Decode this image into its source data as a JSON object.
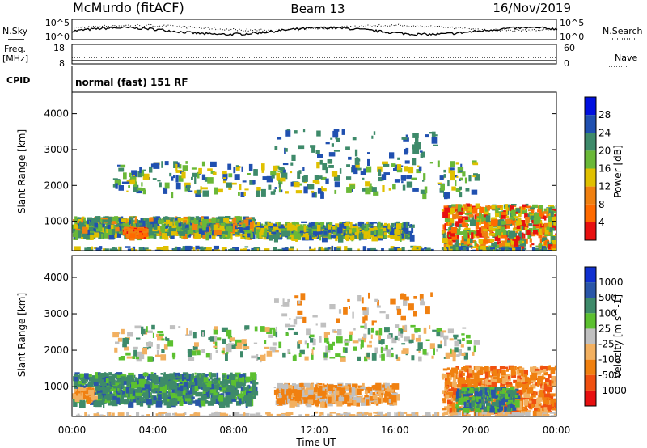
{
  "header": {
    "station": "McMurdo (fitACF)",
    "beam": "Beam 13",
    "date": "16/Nov/2019"
  },
  "side_labels": {
    "nsky": "N.Sky",
    "nsearch": "N.Search",
    "freq_line1": "Freq.",
    "freq_line2": "[MHz]",
    "nave": "Nave",
    "cpid": "CPID"
  },
  "cpid_text": "normal (fast) 151 RF",
  "chart_data": [
    {
      "type": "line",
      "panel": "noise",
      "left_ticks": [
        "10^5",
        "10^0"
      ],
      "right_ticks": [
        "10^5",
        "10^0"
      ],
      "series": [
        {
          "name": "N.Sky",
          "style": "solid"
        },
        {
          "name": "N.Search",
          "style": "dotted"
        }
      ]
    },
    {
      "type": "line",
      "panel": "frequency",
      "left_ticks": [
        "18",
        "8"
      ],
      "right_ticks": [
        "60",
        "0"
      ],
      "series": [
        {
          "name": "Freq.",
          "style": "solid",
          "value": 10.5
        },
        {
          "name": "Nave",
          "style": "dotted",
          "value": 20
        }
      ]
    },
    {
      "type": "heatmap",
      "panel": "power",
      "ylabel": "Slant Range [km]",
      "xlim": [
        0,
        24
      ],
      "ylim": [
        180,
        4600
      ],
      "yticks": [
        1000,
        2000,
        3000,
        4000
      ],
      "colorbar": {
        "label": "Power [dB]",
        "ticks": [
          "4",
          "8",
          "12",
          "16",
          "20",
          "24",
          "28"
        ],
        "colors": [
          "#0010e0",
          "#2050b0",
          "#3e8a6a",
          "#6ab838",
          "#e0c000",
          "#f08010",
          "#ff6a00",
          "#e81010"
        ]
      },
      "features": [
        {
          "t0": 0.0,
          "t1": 9.0,
          "r0": 650,
          "r1": 1150,
          "level": "8-28 dB",
          "desc": "near-range band"
        },
        {
          "t0": 9.0,
          "t1": 16.8,
          "r0": 600,
          "r1": 1000,
          "level": "8-20 dB"
        },
        {
          "t0": 18.3,
          "t1": 24.0,
          "r0": 300,
          "r1": 1500,
          "level": "12-28 dB"
        },
        {
          "t0": 2.0,
          "t1": 20.0,
          "r0": 1800,
          "r1": 3600,
          "level": "4-16 dB",
          "desc": "scattered far range"
        }
      ]
    },
    {
      "type": "heatmap",
      "panel": "velocity",
      "ylabel": "Slant Range [km]",
      "xlabel": "Time UT",
      "xlim": [
        0,
        24
      ],
      "ylim": [
        180,
        4600
      ],
      "xticks": [
        "00:00",
        "04:00",
        "08:00",
        "12:00",
        "16:00",
        "20:00",
        "00:00"
      ],
      "yticks": [
        1000,
        2000,
        3000,
        4000
      ],
      "colorbar": {
        "label": "Velocity [m s^-1]",
        "ticks": [
          "1000",
          "500",
          "100",
          "25",
          "-25",
          "-100",
          "-500",
          "-1000"
        ],
        "colors": [
          "#1030d0",
          "#2a56a8",
          "#3e8a6a",
          "#5cc030",
          "#c0c0c0",
          "#f2b060",
          "#f08010",
          "#f05010",
          "#e81010"
        ]
      },
      "features": [
        {
          "t0": 0.0,
          "t1": 9.0,
          "r0": 600,
          "r1": 1400,
          "level": "100 to 500 m/s"
        },
        {
          "t0": 10.0,
          "t1": 16.0,
          "r0": 600,
          "r1": 1100,
          "level": "-100 to -500 m/s"
        },
        {
          "t0": 18.3,
          "t1": 24.0,
          "r0": 300,
          "r1": 1600,
          "level": "-100 to -500 m/s"
        },
        {
          "t0": 19.0,
          "t1": 22.0,
          "r0": 400,
          "r1": 1000,
          "level": "100 to 500 m/s"
        }
      ]
    }
  ],
  "colors": {
    "background": "#ffffff",
    "axes": "#000000"
  }
}
